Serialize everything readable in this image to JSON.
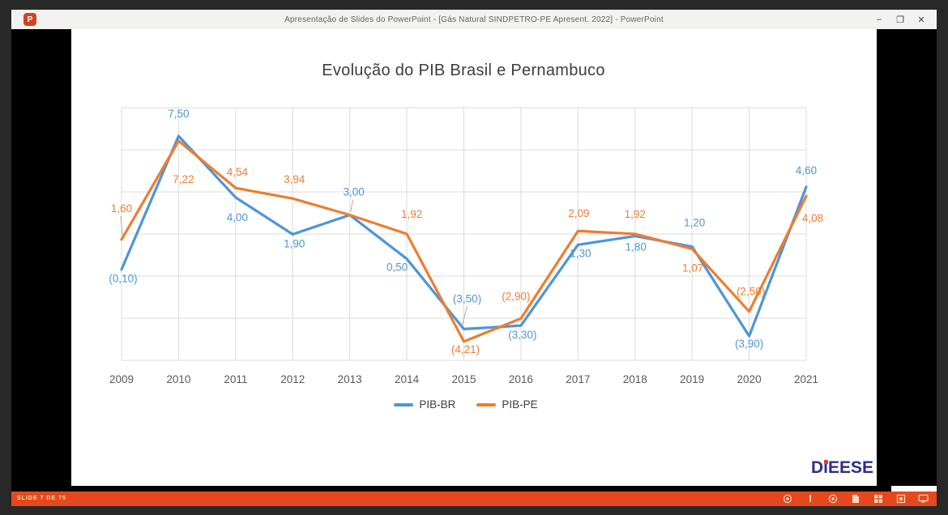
{
  "window": {
    "title": "Apresentação de Slides do PowerPoint - [Gás Natural SINDPETRO-PE Apresent. 2022] - PowerPoint",
    "app_icon_letter": "P",
    "controls": {
      "minimize": "–",
      "restore": "❐",
      "close": "✕"
    }
  },
  "slide": {
    "logo": {
      "d": "D",
      "i": "i",
      "rest": "EESE"
    },
    "logo_colors": {
      "text": "#2e2e87",
      "accent": "#e03a2f"
    }
  },
  "chart_data": {
    "type": "line",
    "title": "Evolução do PIB Brasil e Pernambuco",
    "categories": [
      "2009",
      "2010",
      "2011",
      "2012",
      "2013",
      "2014",
      "2015",
      "2016",
      "2017",
      "2018",
      "2019",
      "2020",
      "2021"
    ],
    "series": [
      {
        "name": "PIB-BR",
        "color": "#4E95D9",
        "values": [
          -0.1,
          7.5,
          4.0,
          1.9,
          3.0,
          0.5,
          -3.5,
          -3.3,
          1.3,
          1.8,
          1.2,
          -3.9,
          4.6
        ],
        "labels": [
          "(0,10)",
          "7,50",
          "4,00",
          "1,90",
          "3,00",
          "0,50",
          "(3,50)",
          "(3,30)",
          "1,30",
          "1,80",
          "1,20",
          "(3,90)",
          "4,60"
        ]
      },
      {
        "name": "PIB-PE",
        "color": "#ED7D31",
        "values": [
          1.6,
          7.22,
          4.54,
          3.94,
          3.0,
          1.92,
          -4.21,
          -2.9,
          2.09,
          1.92,
          1.07,
          -2.5,
          4.08
        ],
        "labels": [
          "1,60",
          "7,22",
          "4,54",
          "3,94",
          "",
          "1,92",
          "(4,21)",
          "(2,90)",
          "2,09",
          "1,92",
          "1,07",
          "(2,50)",
          "4,08"
        ]
      }
    ],
    "ylim": [
      -5.5,
      9.5
    ],
    "grid": true,
    "legend_position": "bottom",
    "grid_color": "#dcdcdc",
    "axis_label_color": "#595959",
    "negative_format": "parentheses, comma decimals"
  },
  "taskbar": {
    "status_text": "SLIDE 7 DE 75",
    "color": "#e5481e",
    "icons": [
      "record-icon",
      "pen-icon",
      "laser-pointer-icon",
      "notes-icon",
      "see-all-slides-icon",
      "zoom-slide-icon",
      "display-settings-icon"
    ]
  }
}
